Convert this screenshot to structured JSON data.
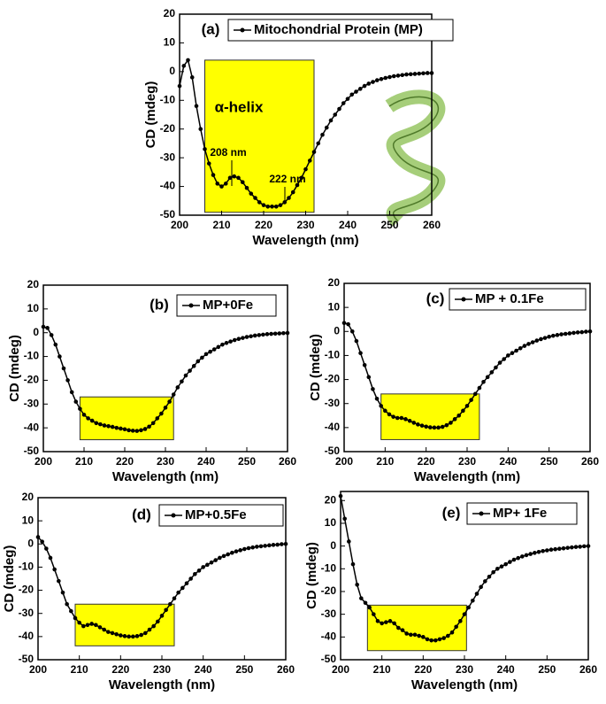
{
  "chart_data": [
    {
      "type": "line",
      "panel": "(a)",
      "x_label": "Wavelength (nm)",
      "y_label": "CD (mdeg)",
      "annotations": [
        "α-helix",
        "208 nm",
        "222 nm"
      ],
      "xlim": [
        200,
        260
      ],
      "xticks": [
        200,
        210,
        220,
        230,
        240,
        250,
        260
      ],
      "ylim": [
        -50,
        20
      ],
      "yticks": [
        -50,
        -40,
        -30,
        -20,
        -10,
        0,
        10,
        20
      ],
      "highlight": {
        "x": [
          206,
          232
        ],
        "y": [
          -49,
          4
        ],
        "color": "#ffff00"
      },
      "x": [
        200,
        201,
        202,
        203,
        204,
        205,
        206,
        207,
        208,
        209,
        210,
        211,
        212,
        213,
        214,
        215,
        216,
        217,
        218,
        219,
        220,
        221,
        222,
        223,
        224,
        225,
        226,
        227,
        228,
        229,
        230,
        231,
        232,
        233,
        234,
        235,
        236,
        237,
        238,
        239,
        240,
        241,
        242,
        243,
        244,
        245,
        246,
        247,
        248,
        249,
        250,
        251,
        252,
        253,
        254,
        255,
        256,
        257,
        258,
        259,
        260
      ],
      "series": [
        {
          "name": "Mitochondrial Protein (MP)",
          "color": "#000000",
          "values": [
            -5,
            2,
            4,
            -2,
            -12,
            -20,
            -27,
            -32,
            -36,
            -39,
            -40,
            -39,
            -37,
            -36.5,
            -37,
            -38.5,
            -40.5,
            -42.5,
            -44,
            -45.5,
            -46.5,
            -47,
            -47,
            -47,
            -46.5,
            -45.5,
            -44,
            -42,
            -39.5,
            -37,
            -34,
            -31,
            -28,
            -25,
            -22,
            -19.5,
            -17,
            -15,
            -13,
            -11,
            -9.5,
            -8,
            -7,
            -6,
            -5,
            -4.2,
            -3.6,
            -3,
            -2.6,
            -2.2,
            -1.9,
            -1.6,
            -1.4,
            -1.2,
            -1,
            -0.9,
            -0.8,
            -0.7,
            -0.6,
            -0.5,
            -0.5
          ]
        }
      ]
    },
    {
      "type": "line",
      "panel": "(b)",
      "x_label": "Wavelength (nm)",
      "y_label": "CD (mdeg)",
      "xlim": [
        200,
        260
      ],
      "xticks": [
        200,
        210,
        220,
        230,
        240,
        250,
        260
      ],
      "ylim": [
        -50,
        20
      ],
      "yticks": [
        -50,
        -40,
        -30,
        -20,
        -10,
        0,
        10,
        20
      ],
      "highlight": {
        "x": [
          209,
          232
        ],
        "y": [
          -45,
          -27
        ],
        "color": "#ffff00"
      },
      "x": [
        200,
        201,
        202,
        203,
        204,
        205,
        206,
        207,
        208,
        209,
        210,
        211,
        212,
        213,
        214,
        215,
        216,
        217,
        218,
        219,
        220,
        221,
        222,
        223,
        224,
        225,
        226,
        227,
        228,
        229,
        230,
        231,
        232,
        233,
        234,
        235,
        236,
        237,
        238,
        239,
        240,
        241,
        242,
        243,
        244,
        245,
        246,
        247,
        248,
        249,
        250,
        251,
        252,
        253,
        254,
        255,
        256,
        257,
        258,
        259,
        260
      ],
      "series": [
        {
          "name": "MP+0Fe",
          "color": "#000000",
          "values": [
            2.5,
            2,
            -1,
            -5,
            -10,
            -15,
            -20,
            -25,
            -29,
            -32,
            -34.5,
            -36,
            -37,
            -38,
            -38.5,
            -39,
            -39.3,
            -39.6,
            -40,
            -40.3,
            -40.6,
            -41,
            -41.2,
            -41.3,
            -41,
            -40.5,
            -39.5,
            -38,
            -36,
            -34,
            -31.5,
            -29,
            -26,
            -23,
            -20.5,
            -18,
            -16,
            -14,
            -12,
            -10.5,
            -9,
            -8,
            -7,
            -6,
            -5,
            -4.3,
            -3.7,
            -3.1,
            -2.6,
            -2.2,
            -1.8,
            -1.5,
            -1.2,
            -1,
            -0.8,
            -0.6,
            -0.5,
            -0.4,
            -0.3,
            -0.2,
            -0.1
          ]
        }
      ]
    },
    {
      "type": "line",
      "panel": "(c)",
      "x_label": "Wavelength (nm)",
      "y_label": "CD (mdeg)",
      "xlim": [
        200,
        260
      ],
      "xticks": [
        200,
        210,
        220,
        230,
        240,
        250,
        260
      ],
      "ylim": [
        -50,
        20
      ],
      "yticks": [
        -50,
        -40,
        -30,
        -20,
        -10,
        0,
        10,
        20
      ],
      "highlight": {
        "x": [
          209,
          233
        ],
        "y": [
          -45,
          -26
        ],
        "color": "#ffff00"
      },
      "x": [
        200,
        201,
        202,
        203,
        204,
        205,
        206,
        207,
        208,
        209,
        210,
        211,
        212,
        213,
        214,
        215,
        216,
        217,
        218,
        219,
        220,
        221,
        222,
        223,
        224,
        225,
        226,
        227,
        228,
        229,
        230,
        231,
        232,
        233,
        234,
        235,
        236,
        237,
        238,
        239,
        240,
        241,
        242,
        243,
        244,
        245,
        246,
        247,
        248,
        249,
        250,
        251,
        252,
        253,
        254,
        255,
        256,
        257,
        258,
        259,
        260
      ],
      "series": [
        {
          "name": "MP + 0.1Fe",
          "color": "#000000",
          "values": [
            3.5,
            3,
            0,
            -4,
            -9,
            -14,
            -19,
            -24,
            -28,
            -31,
            -33,
            -34.5,
            -35.5,
            -36,
            -36,
            -36.5,
            -37.2,
            -38,
            -38.7,
            -39.2,
            -39.6,
            -39.9,
            -40,
            -40,
            -39.7,
            -39,
            -38,
            -36.5,
            -35,
            -33,
            -31,
            -28.5,
            -26,
            -23.5,
            -21,
            -19,
            -17,
            -15,
            -13,
            -11.5,
            -10,
            -9,
            -8,
            -7,
            -6,
            -5.2,
            -4.5,
            -3.8,
            -3.2,
            -2.7,
            -2.2,
            -1.8,
            -1.5,
            -1.2,
            -1,
            -0.8,
            -0.6,
            -0.4,
            -0.3,
            -0.1,
            0
          ]
        }
      ]
    },
    {
      "type": "line",
      "panel": "(d)",
      "x_label": "Wavelength (nm)",
      "y_label": "CD (mdeg)",
      "xlim": [
        200,
        260
      ],
      "xticks": [
        200,
        210,
        220,
        230,
        240,
        250,
        260
      ],
      "ylim": [
        -50,
        20
      ],
      "yticks": [
        -50,
        -40,
        -30,
        -20,
        -10,
        0,
        10,
        20
      ],
      "highlight": {
        "x": [
          209,
          233
        ],
        "y": [
          -44,
          -26
        ],
        "color": "#ffff00"
      },
      "x": [
        200,
        201,
        202,
        203,
        204,
        205,
        206,
        207,
        208,
        209,
        210,
        211,
        212,
        213,
        214,
        215,
        216,
        217,
        218,
        219,
        220,
        221,
        222,
        223,
        224,
        225,
        226,
        227,
        228,
        229,
        230,
        231,
        232,
        233,
        234,
        235,
        236,
        237,
        238,
        239,
        240,
        241,
        242,
        243,
        244,
        245,
        246,
        247,
        248,
        249,
        250,
        251,
        252,
        253,
        254,
        255,
        256,
        257,
        258,
        259,
        260
      ],
      "series": [
        {
          "name": "MP+0.5Fe",
          "color": "#000000",
          "values": [
            3,
            1,
            -2,
            -6,
            -11,
            -16,
            -21,
            -26,
            -29,
            -32,
            -34,
            -35.5,
            -35,
            -34.5,
            -35,
            -36,
            -37,
            -38,
            -38.5,
            -39,
            -39.5,
            -39.8,
            -40,
            -40,
            -39.8,
            -39.3,
            -38.5,
            -37,
            -35.5,
            -33.5,
            -31,
            -28.5,
            -26,
            -23.5,
            -21,
            -19,
            -17,
            -15,
            -13,
            -11.5,
            -10,
            -9,
            -8,
            -7,
            -6,
            -5.2,
            -4.5,
            -3.8,
            -3.2,
            -2.7,
            -2.2,
            -1.8,
            -1.5,
            -1.2,
            -1,
            -0.8,
            -0.6,
            -0.4,
            -0.3,
            -0.1,
            0
          ]
        }
      ]
    },
    {
      "type": "line",
      "panel": "(e)",
      "x_label": "Wavelength (nm)",
      "y_label": "CD (mdeg)",
      "xlim": [
        200,
        260
      ],
      "xticks": [
        200,
        210,
        220,
        230,
        240,
        250,
        260
      ],
      "ylim": [
        -50,
        24
      ],
      "yticks": [
        -50,
        -40,
        -30,
        -20,
        -10,
        0,
        10,
        20
      ],
      "highlight": {
        "x": [
          206.5,
          230.5
        ],
        "y": [
          -46,
          -26
        ],
        "color": "#ffff00"
      },
      "x": [
        200,
        201,
        202,
        203,
        204,
        205,
        206,
        207,
        208,
        209,
        210,
        211,
        212,
        213,
        214,
        215,
        216,
        217,
        218,
        219,
        220,
        221,
        222,
        223,
        224,
        225,
        226,
        227,
        228,
        229,
        230,
        231,
        232,
        233,
        234,
        235,
        236,
        237,
        238,
        239,
        240,
        241,
        242,
        243,
        244,
        245,
        246,
        247,
        248,
        249,
        250,
        251,
        252,
        253,
        254,
        255,
        256,
        257,
        258,
        259,
        260
      ],
      "series": [
        {
          "name": "MP+ 1Fe",
          "color": "#000000",
          "values": [
            22,
            12,
            2,
            -8,
            -17,
            -23,
            -25,
            -27,
            -30,
            -33,
            -34,
            -33.5,
            -33,
            -34,
            -36,
            -37,
            -38.5,
            -39,
            -39,
            -39.5,
            -40,
            -41,
            -41.5,
            -41.5,
            -41,
            -40.5,
            -39.5,
            -38,
            -35.5,
            -33,
            -30,
            -27,
            -24,
            -21,
            -18,
            -15.5,
            -13.5,
            -11.5,
            -10,
            -9,
            -8,
            -7,
            -6,
            -5.3,
            -4.6,
            -4,
            -3.5,
            -3,
            -2.6,
            -2.2,
            -1.9,
            -1.6,
            -1.4,
            -1.2,
            -1,
            -0.8,
            -0.6,
            -0.4,
            -0.3,
            -0.1,
            0
          ]
        }
      ]
    }
  ]
}
